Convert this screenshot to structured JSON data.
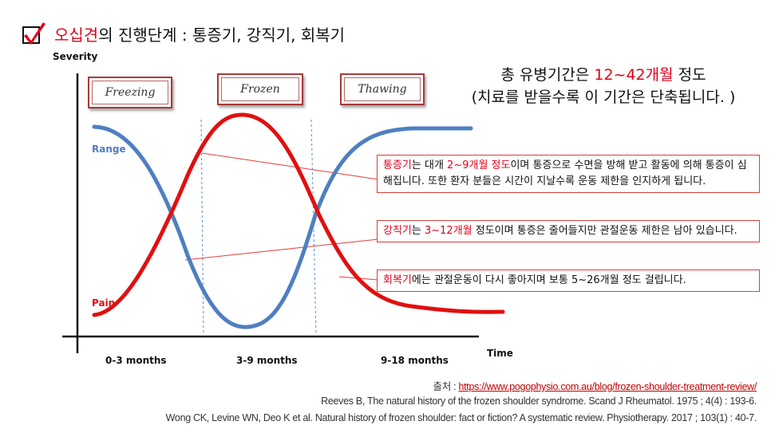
{
  "header": {
    "title_red": "오십견",
    "title_rest": "의 진행단계 : 통증기, 강직기, 회복기",
    "checkbox_icon": "checkbox-checked-icon"
  },
  "diagram": {
    "y_axis_label": "Severity",
    "x_axis_label": "Time",
    "phases": [
      "Freezing",
      "Frozen",
      "Thawing"
    ],
    "x_ticks": [
      "0-3 months",
      "3-9 months",
      "9-18 months"
    ],
    "curve_labels": {
      "range": "Range",
      "pain": "Pain"
    },
    "colors": {
      "range": "#4f7fc0",
      "pain": "#e01010",
      "label_red": "#e0001a",
      "divider": "#5b8fd0"
    }
  },
  "summary": {
    "line1_pre": "총 유병기간은 ",
    "line1_red": "12~42개월",
    "line1_post": " 정도",
    "line2": "(치료를 받을수록 이 기간은 단축됩니다. )"
  },
  "callouts": [
    {
      "red": "통증기",
      "pre": "는 대개 ",
      "red2": "2~9개월 정도",
      "post": "이며 통증으로 수면을 방해 받고 활동에 의해 통증이 심해집니다. 또한 환자 분들은 시간이 지날수록 운동 제한을 인지하게 됩니다."
    },
    {
      "red": "강직기",
      "pre": "는 ",
      "red2": "3~12개월",
      "post": " 정도이며 통증은 줄어들지만 관절운동 제한은 남아 있습니다."
    },
    {
      "red": "회복기",
      "pre": "에는 관절운동이 다시 좋아지며 보통 5~26개월 정도 걸립니다.",
      "red2": "",
      "post": ""
    }
  ],
  "references": {
    "source_label": "출처 : ",
    "source_url": "https://www.pogophysio.com.au/blog/frozen-shoulder-treatment-review/",
    "ref1": "Reeves B, The natural history of the frozen shoulder syndrome. Scand J Rheumatol. 1975 ; 4(4) : 193-6.",
    "ref2": "Wong CK, Levine WN, Deo K et al. Natural history of frozen shoulder: fact or fiction? A systematic review. Physiotherapy. 2017 ; 103(1) : 40-7."
  }
}
